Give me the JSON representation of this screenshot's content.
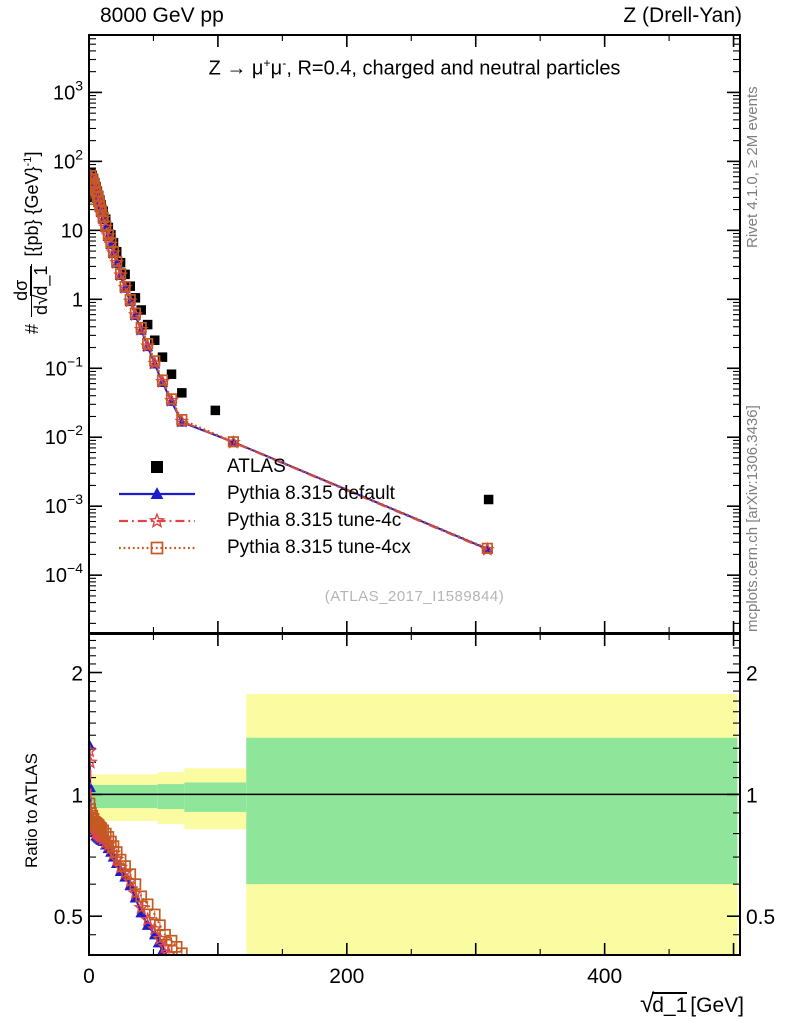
{
  "header": {
    "left_label": "8000 GeV pp",
    "right_label": "Z (Drell-Yan)"
  },
  "main_panel": {
    "title": {
      "pre": "Z → μ",
      "sup1": "+",
      "mid": "μ",
      "sup2": "-",
      "post": ", R=0.4, charged and neutral particles"
    },
    "ylabel": {
      "prefix": "#",
      "frac_top": "dσ",
      "frac_bottom_d": "d",
      "frac_bottom_sqrt": "√",
      "frac_bottom_arg": "d_1",
      "units_pre": "[{pb} {GeV}",
      "units_exp": "-1",
      "units_post": "]"
    },
    "watermark": "(ATLAS_2017_I1589844)"
  },
  "ratio_panel": {
    "ylabel": "Ratio to ATLAS"
  },
  "xaxis": {
    "sqrt_sign": "√",
    "arg": "d_1",
    "units": "[GeV]"
  },
  "right_margin": {
    "top_text": "Rivet 4.1.0, ≥ 2M events",
    "bottom_text": "mcplots.cern.ch [arXiv:1306.3436]"
  },
  "legend": {
    "items": [
      {
        "label": "ATLAS",
        "style": "atlas",
        "color": "#000000"
      },
      {
        "label": "Pythia 8.315 default",
        "style": "default",
        "color": "#1c1ccd"
      },
      {
        "label": "Pythia 8.315 tune-4c",
        "style": "tune4c",
        "color": "#e04545"
      },
      {
        "label": "Pythia 8.315 tune-4cx",
        "style": "tune4cx",
        "color": "#c45a22"
      }
    ]
  },
  "chart_data": {
    "type": "line",
    "title": "Z -> mu+mu-, R=0.4, charged and neutral particles",
    "xlabel": "sqrt(d_1) [GeV]",
    "ylabel": "# dsigma/dsqrt(d_1) [{pb} {GeV}^-1]",
    "xlim": [
      0,
      505
    ],
    "x_major_ticks": [
      0,
      100,
      200,
      300,
      400,
      500
    ],
    "x_minor_ticks": [
      50,
      150,
      250,
      350,
      450
    ],
    "x_labeled_ticks": [
      0,
      200,
      400
    ],
    "main": {
      "ylog": true,
      "ylim": [
        1.45e-05,
        6800
      ],
      "ytick_exponents": [
        3,
        2,
        1,
        0,
        -1,
        -2,
        -3,
        -4
      ],
      "series": [
        {
          "name": "ATLAS",
          "marker": "square_filled",
          "color": "#000000",
          "line": "none",
          "points": [
            [
              0.5,
              30
            ],
            [
              1.5,
              68
            ],
            [
              2.5,
              63
            ],
            [
              3.5,
              56
            ],
            [
              4.5,
              49
            ],
            [
              5.5,
              43
            ],
            [
              6.5,
              37
            ],
            [
              7.5,
              32
            ],
            [
              8.5,
              27.5
            ],
            [
              9.5,
              23.5
            ],
            [
              11,
              19
            ],
            [
              13,
              14.5
            ],
            [
              15,
              11
            ],
            [
              17,
              8.6
            ],
            [
              19,
              6.6
            ],
            [
              21.5,
              4.9
            ],
            [
              24.5,
              3.4
            ],
            [
              28,
              2.3
            ],
            [
              32,
              1.55
            ],
            [
              36,
              1.05
            ],
            [
              40.5,
              0.7
            ],
            [
              45.5,
              0.43
            ],
            [
              51,
              0.255
            ],
            [
              57,
              0.145
            ],
            [
              64,
              0.082
            ],
            [
              72,
              0.044
            ],
            [
              98,
              0.0245
            ],
            [
              310,
              0.00125
            ]
          ]
        },
        {
          "name": "Pythia 8.315 default",
          "marker": "triangle_filled",
          "color": "#1c1ccd",
          "line": "solid",
          "points": [
            [
              0.5,
              39
            ],
            [
              1.5,
              60
            ],
            [
              2.5,
              54
            ],
            [
              3.5,
              46
            ],
            [
              4.5,
              39.5
            ],
            [
              5.5,
              34
            ],
            [
              6.5,
              29
            ],
            [
              7.5,
              25
            ],
            [
              8.5,
              21.3
            ],
            [
              9.5,
              18.1
            ],
            [
              11,
              14.5
            ],
            [
              13,
              10.9
            ],
            [
              15,
              8.1
            ],
            [
              17,
              6.2
            ],
            [
              19,
              4.6
            ],
            [
              21.5,
              3.3
            ],
            [
              24.5,
              2.2
            ],
            [
              28,
              1.44
            ],
            [
              32,
              0.92
            ],
            [
              36,
              0.58
            ],
            [
              40.5,
              0.355
            ],
            [
              45.5,
              0.205
            ],
            [
              51,
              0.115
            ],
            [
              57,
              0.062
            ],
            [
              64,
              0.033
            ],
            [
              72,
              0.0165
            ],
            [
              112,
              0.0085
            ],
            [
              309,
              0.00024
            ]
          ]
        },
        {
          "name": "Pythia 8.315 tune-4c",
          "marker": "star_open",
          "color": "#e04545",
          "line": "dashdot",
          "points": [
            [
              0.5,
              37
            ],
            [
              1.5,
              61
            ],
            [
              2.5,
              55
            ],
            [
              3.5,
              47
            ],
            [
              4.5,
              40.5
            ],
            [
              5.5,
              35
            ],
            [
              6.5,
              30
            ],
            [
              7.5,
              25.6
            ],
            [
              8.5,
              21.8
            ],
            [
              9.5,
              18.5
            ],
            [
              11,
              14.8
            ],
            [
              13,
              11.1
            ],
            [
              15,
              8.3
            ],
            [
              17,
              6.3
            ],
            [
              19,
              4.7
            ],
            [
              21.5,
              3.4
            ],
            [
              24.5,
              2.25
            ],
            [
              28,
              1.47
            ],
            [
              32,
              0.94
            ],
            [
              36,
              0.595
            ],
            [
              40.5,
              0.365
            ],
            [
              45.5,
              0.21
            ],
            [
              51,
              0.118
            ],
            [
              57,
              0.064
            ],
            [
              64,
              0.034
            ],
            [
              72,
              0.017
            ],
            [
              112,
              0.0084
            ],
            [
              309,
              0.000235
            ]
          ]
        },
        {
          "name": "Pythia 8.315 tune-4cx",
          "marker": "square_open",
          "color": "#c45a22",
          "line": "dotted",
          "points": [
            [
              0.5,
              28
            ],
            [
              1.5,
              62
            ],
            [
              2.5,
              56
            ],
            [
              3.5,
              48
            ],
            [
              4.5,
              41.5
            ],
            [
              5.5,
              36
            ],
            [
              6.5,
              31
            ],
            [
              7.5,
              26.5
            ],
            [
              8.5,
              22.7
            ],
            [
              9.5,
              19.3
            ],
            [
              11,
              15.4
            ],
            [
              13,
              11.5
            ],
            [
              15,
              8.6
            ],
            [
              17,
              6.6
            ],
            [
              19,
              4.9
            ],
            [
              21.5,
              3.55
            ],
            [
              24.5,
              2.35
            ],
            [
              28,
              1.53
            ],
            [
              32,
              0.99
            ],
            [
              36,
              0.63
            ],
            [
              40.5,
              0.39
            ],
            [
              45.5,
              0.228
            ],
            [
              51,
              0.128
            ],
            [
              57,
              0.0675
            ],
            [
              64,
              0.036
            ],
            [
              72,
              0.018
            ],
            [
              112,
              0.0086
            ],
            [
              309,
              0.000245
            ]
          ]
        }
      ]
    },
    "ratio": {
      "ylog": true,
      "ylim": [
        0.401,
        2.49
      ],
      "ytick_labels": [
        0.5,
        1,
        2
      ],
      "y_minor_ticks": [
        0.45,
        0.6,
        0.7,
        0.8,
        0.9,
        1.1,
        1.2,
        1.3,
        1.4,
        1.5,
        1.6,
        1.7,
        1.8,
        1.9,
        2.1,
        2.2,
        2.3,
        2.4
      ],
      "reference_line": 1,
      "band_colors": {
        "outer": "#fbfba2",
        "inner": "#8fe69b"
      },
      "bands": [
        {
          "x0": 0,
          "x1": 53,
          "outer": [
            0.86,
            1.12
          ],
          "inner": [
            0.925,
            1.055
          ]
        },
        {
          "x0": 53,
          "x1": 74,
          "outer": [
            0.845,
            1.135
          ],
          "inner": [
            0.92,
            1.06
          ]
        },
        {
          "x0": 74,
          "x1": 122,
          "outer": [
            0.82,
            1.16
          ],
          "inner": [
            0.905,
            1.07
          ]
        },
        {
          "x0": 122,
          "x1": 503,
          "outer": [
            0.4,
            1.77
          ],
          "inner": [
            0.6,
            1.38
          ]
        }
      ],
      "series": [
        {
          "name": "Pythia 8.315 default",
          "marker": "triangle_filled",
          "color": "#1c1ccd",
          "line": "solid",
          "points": [
            [
              0.4,
              1.32
            ],
            [
              0.9,
              1.04
            ],
            [
              1.5,
              0.88
            ],
            [
              2.5,
              0.855
            ],
            [
              3.5,
              0.825
            ],
            [
              4.5,
              0.805
            ],
            [
              5.5,
              0.79
            ],
            [
              6.5,
              0.785
            ],
            [
              7.5,
              0.78
            ],
            [
              8.5,
              0.775
            ],
            [
              9.5,
              0.77
            ],
            [
              11,
              0.765
            ],
            [
              13,
              0.75
            ],
            [
              15,
              0.735
            ],
            [
              17,
              0.72
            ],
            [
              19,
              0.7
            ],
            [
              21.5,
              0.675
            ],
            [
              24.5,
              0.645
            ],
            [
              28,
              0.625
            ],
            [
              32,
              0.595
            ],
            [
              36,
              0.555
            ],
            [
              40.5,
              0.51
            ],
            [
              45.5,
              0.475
            ],
            [
              51,
              0.45
            ],
            [
              54,
              0.43
            ],
            [
              57,
              0.41
            ],
            [
              60,
              0.392
            ]
          ]
        },
        {
          "name": "Pythia 8.315 tune-4c",
          "marker": "star_open",
          "color": "#e04545",
          "line": "dashdot",
          "points": [
            [
              0.4,
              1.28
            ],
            [
              0.9,
              1.2
            ],
            [
              1.5,
              0.9
            ],
            [
              2.5,
              0.87
            ],
            [
              3.5,
              0.84
            ],
            [
              4.5,
              0.82
            ],
            [
              5.5,
              0.805
            ],
            [
              6.5,
              0.8
            ],
            [
              7.5,
              0.795
            ],
            [
              8.5,
              0.79
            ],
            [
              9.5,
              0.785
            ],
            [
              11,
              0.775
            ],
            [
              13,
              0.76
            ],
            [
              15,
              0.75
            ],
            [
              17,
              0.735
            ],
            [
              19,
              0.715
            ],
            [
              21.5,
              0.69
            ],
            [
              24.5,
              0.66
            ],
            [
              28,
              0.64
            ],
            [
              32,
              0.61
            ],
            [
              36,
              0.57
            ],
            [
              40.5,
              0.525
            ],
            [
              45.5,
              0.49
            ],
            [
              51,
              0.465
            ],
            [
              55,
              0.44
            ],
            [
              59,
              0.42
            ],
            [
              62,
              0.402
            ]
          ]
        },
        {
          "name": "Pythia 8.315 tune-4cx",
          "marker": "square_open",
          "color": "#c45a22",
          "line": "dotted",
          "points": [
            [
              0.4,
              0.95
            ],
            [
              0.9,
              0.92
            ],
            [
              1.5,
              0.9
            ],
            [
              2.5,
              0.885
            ],
            [
              3.5,
              0.87
            ],
            [
              4.5,
              0.855
            ],
            [
              5.5,
              0.85
            ],
            [
              6.5,
              0.845
            ],
            [
              7.5,
              0.84
            ],
            [
              8.5,
              0.83
            ],
            [
              9.5,
              0.825
            ],
            [
              11,
              0.815
            ],
            [
              13,
              0.8
            ],
            [
              15,
              0.785
            ],
            [
              17,
              0.765
            ],
            [
              19,
              0.745
            ],
            [
              21.5,
              0.72
            ],
            [
              24.5,
              0.69
            ],
            [
              28,
              0.665
            ],
            [
              32,
              0.635
            ],
            [
              36,
              0.6
            ],
            [
              40.5,
              0.56
            ],
            [
              45.5,
              0.535
            ],
            [
              51,
              0.505
            ],
            [
              55,
              0.475
            ],
            [
              59,
              0.45
            ],
            [
              64,
              0.435
            ],
            [
              68,
              0.42
            ],
            [
              72,
              0.405
            ]
          ]
        }
      ]
    }
  }
}
